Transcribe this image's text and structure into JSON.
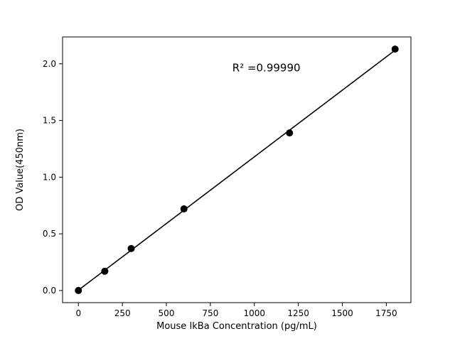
{
  "chart_data": {
    "type": "scatter",
    "title": "",
    "xlabel": "Mouse IkBa Concentration (pg/mL)",
    "ylabel": "OD Value(450nm)",
    "annotation": "R² =0.99990",
    "x": [
      0,
      150,
      300,
      600,
      1200,
      1800
    ],
    "y": [
      0.0,
      0.17,
      0.37,
      0.72,
      1.39,
      2.13
    ],
    "fit_line": {
      "x": [
        0,
        1800
      ],
      "y": [
        0.003,
        2.12
      ]
    },
    "xlim": [
      -90,
      1890
    ],
    "ylim": [
      -0.107,
      2.237
    ],
    "xticks": [
      0,
      250,
      500,
      750,
      1000,
      1250,
      1500,
      1750
    ],
    "yticks": [
      0.0,
      0.5,
      1.0,
      1.5,
      2.0
    ],
    "grid": false,
    "legend": "none",
    "marker_color": "#000000",
    "line_color": "#000000",
    "axis_color": "#000000",
    "background": "#ffffff",
    "annotation_frac": [
      0.585,
      0.13
    ]
  }
}
